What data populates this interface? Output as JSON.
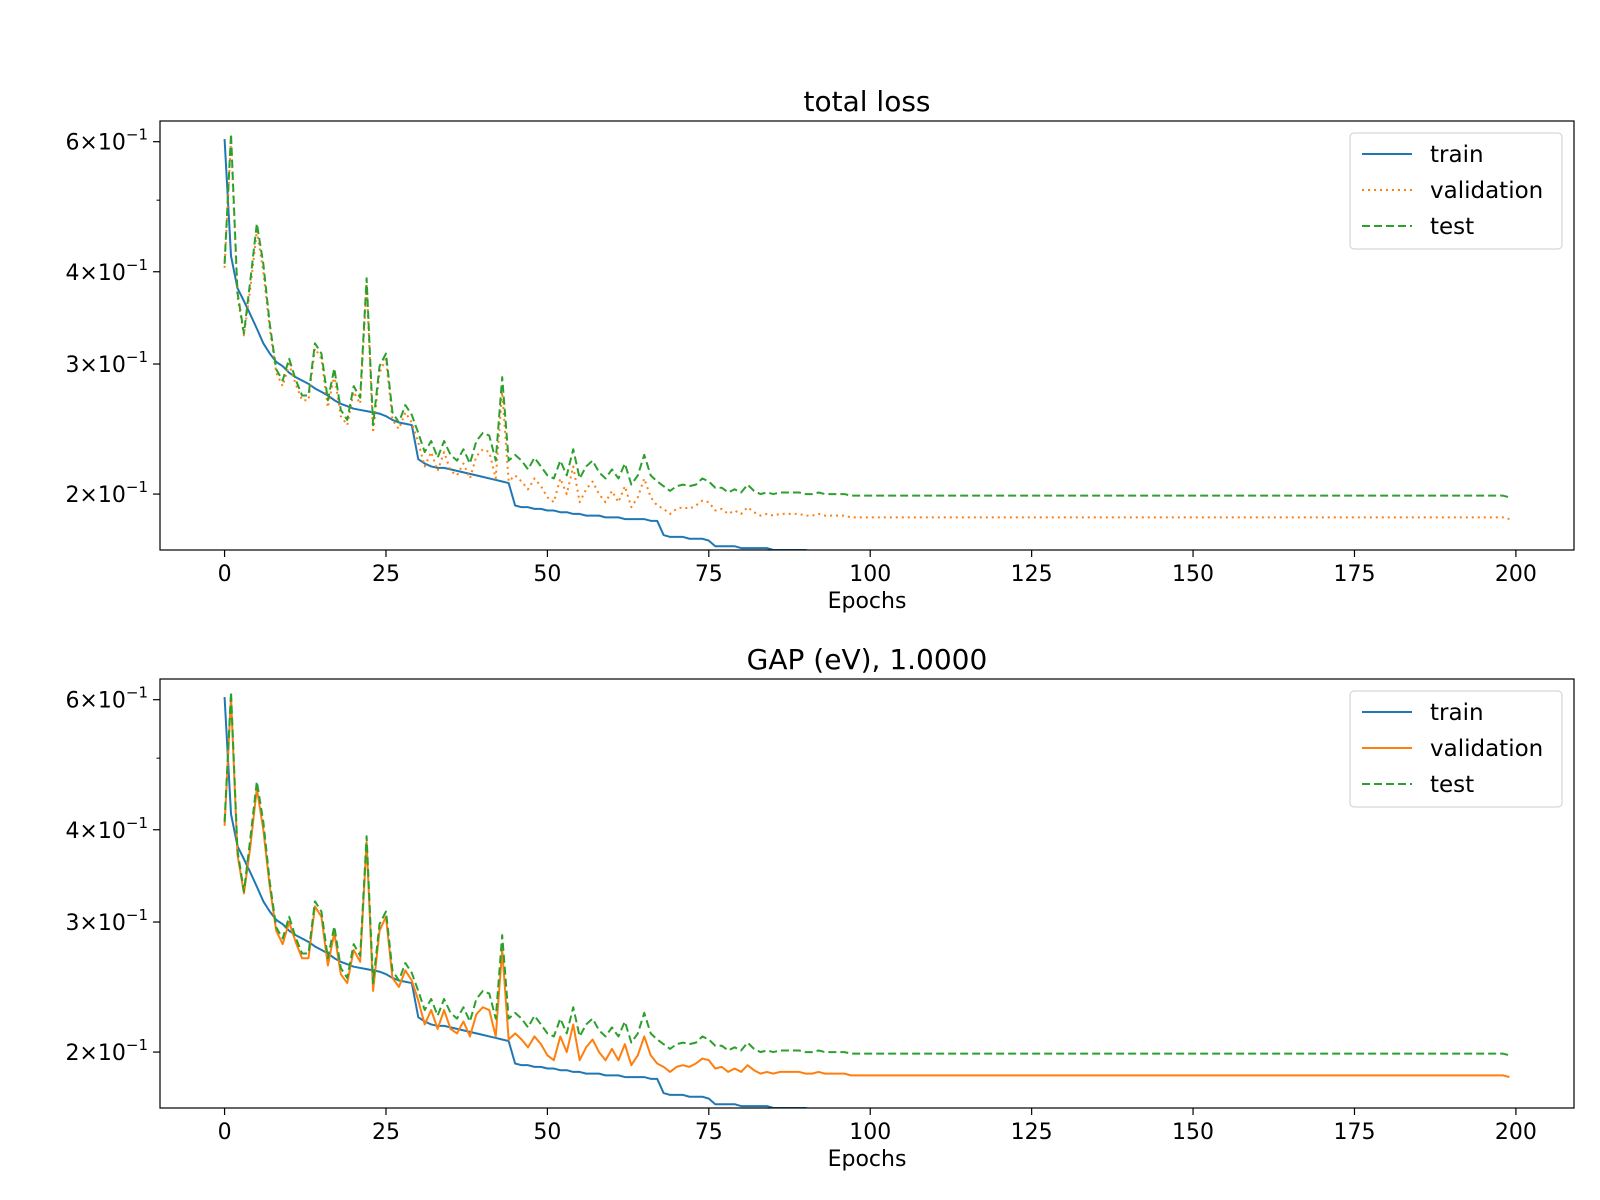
{
  "chart_data": [
    {
      "type": "line",
      "title": "total loss",
      "xlabel": "Epochs",
      "ylabel": "",
      "yscale": "log",
      "xlim": [
        -10,
        209
      ],
      "ylim": [
        0.168,
        0.64
      ],
      "xticks": [
        0,
        25,
        50,
        75,
        100,
        125,
        150,
        175,
        200
      ],
      "xtick_labels": [
        "0",
        "25",
        "50",
        "75",
        "100",
        "125",
        "150",
        "175",
        "200"
      ],
      "yticks": [
        0.6,
        0.4,
        0.3,
        0.2
      ],
      "ytick_labels": [
        {
          "mantissa": "6",
          "exponent": "−1"
        },
        {
          "mantissa": "4",
          "exponent": "−1"
        },
        {
          "mantissa": "3",
          "exponent": "−1"
        },
        {
          "mantissa": "2",
          "exponent": "−1"
        }
      ],
      "legend": {
        "position": "upper right",
        "entries": [
          "train",
          "validation",
          "test"
        ]
      },
      "grid": false,
      "series": [
        {
          "name": "train",
          "color": "#1f77b4",
          "style": "solid",
          "key": "train"
        },
        {
          "name": "validation",
          "color": "#ff7f0e",
          "style": "dotted",
          "key": "validation"
        },
        {
          "name": "test",
          "color": "#2ca02c",
          "style": "dashed",
          "key": "test"
        }
      ]
    },
    {
      "type": "line",
      "title": "GAP (eV), 1.0000",
      "xlabel": "Epochs",
      "ylabel": "",
      "yscale": "log",
      "xlim": [
        -10,
        209
      ],
      "ylim": [
        0.168,
        0.64
      ],
      "xticks": [
        0,
        25,
        50,
        75,
        100,
        125,
        150,
        175,
        200
      ],
      "xtick_labels": [
        "0",
        "25",
        "50",
        "75",
        "100",
        "125",
        "150",
        "175",
        "200"
      ],
      "yticks": [
        0.6,
        0.4,
        0.3,
        0.2
      ],
      "ytick_labels": [
        {
          "mantissa": "6",
          "exponent": "−1"
        },
        {
          "mantissa": "4",
          "exponent": "−1"
        },
        {
          "mantissa": "3",
          "exponent": "−1"
        },
        {
          "mantissa": "2",
          "exponent": "−1"
        }
      ],
      "legend": {
        "position": "upper right",
        "entries": [
          "train",
          "validation",
          "test"
        ]
      },
      "grid": false,
      "series": [
        {
          "name": "train",
          "color": "#1f77b4",
          "style": "solid",
          "key": "train"
        },
        {
          "name": "validation",
          "color": "#ff7f0e",
          "style": "solid",
          "key": "validation"
        },
        {
          "name": "test",
          "color": "#2ca02c",
          "style": "dashed",
          "key": "test"
        }
      ]
    }
  ],
  "epoch_data": {
    "epochs": "0-199",
    "train": [
      0.605,
      0.42,
      0.38,
      0.365,
      0.35,
      0.335,
      0.32,
      0.31,
      0.302,
      0.298,
      0.292,
      0.288,
      0.285,
      0.282,
      0.278,
      0.275,
      0.272,
      0.268,
      0.265,
      0.263,
      0.261,
      0.26,
      0.259,
      0.258,
      0.257,
      0.255,
      0.252,
      0.25,
      0.249,
      0.248,
      0.223,
      0.22,
      0.218,
      0.217,
      0.217,
      0.216,
      0.215,
      0.214,
      0.213,
      0.212,
      0.211,
      0.21,
      0.209,
      0.208,
      0.207,
      0.193,
      0.192,
      0.192,
      0.191,
      0.191,
      0.19,
      0.19,
      0.189,
      0.189,
      0.188,
      0.188,
      0.187,
      0.187,
      0.187,
      0.186,
      0.186,
      0.186,
      0.185,
      0.185,
      0.185,
      0.185,
      0.184,
      0.184,
      0.176,
      0.175,
      0.175,
      0.175,
      0.174,
      0.174,
      0.174,
      0.173,
      0.17,
      0.17,
      0.17,
      0.17,
      0.169,
      0.169,
      0.169,
      0.169,
      0.169,
      0.168,
      0.168,
      0.168,
      0.168,
      0.168,
      0.168,
      0.167,
      0.167,
      0.167,
      0.167,
      0.167,
      0.167,
      0.164,
      0.164,
      0.164,
      0.164,
      0.163,
      0.163,
      0.163,
      0.163,
      0.163,
      0.163,
      0.162,
      0.162,
      0.162,
      0.162,
      0.161,
      0.161,
      0.16,
      0.16,
      0.16,
      0.16,
      0.16,
      0.159,
      0.159,
      0.159,
      0.159,
      0.159,
      0.159,
      0.159,
      0.159,
      0.159,
      0.159,
      0.159,
      0.159,
      0.159,
      0.159,
      0.159,
      0.159,
      0.159,
      0.159,
      0.159,
      0.159,
      0.159,
      0.159,
      0.159,
      0.159,
      0.159,
      0.159,
      0.159,
      0.159,
      0.159,
      0.159,
      0.159,
      0.159,
      0.159,
      0.159,
      0.159,
      0.159,
      0.159,
      0.159,
      0.159,
      0.159,
      0.159,
      0.159,
      0.159,
      0.159,
      0.159,
      0.159,
      0.159,
      0.159,
      0.159,
      0.159,
      0.159,
      0.159,
      0.159,
      0.159,
      0.159,
      0.159,
      0.159,
      0.159,
      0.159,
      0.159,
      0.159,
      0.159,
      0.159,
      0.159,
      0.159,
      0.159,
      0.159,
      0.159,
      0.159,
      0.159,
      0.159,
      0.159,
      0.159,
      0.159,
      0.159,
      0.159,
      0.159,
      0.159,
      0.159,
      0.159,
      0.159,
      0.158
    ],
    "validation": [
      0.405,
      0.605,
      0.37,
      0.328,
      0.38,
      0.455,
      0.4,
      0.335,
      0.292,
      0.28,
      0.3,
      0.282,
      0.268,
      0.268,
      0.315,
      0.305,
      0.262,
      0.29,
      0.255,
      0.248,
      0.275,
      0.265,
      0.385,
      0.242,
      0.292,
      0.305,
      0.252,
      0.245,
      0.258,
      0.25,
      0.235,
      0.218,
      0.228,
      0.215,
      0.228,
      0.215,
      0.212,
      0.22,
      0.21,
      0.225,
      0.23,
      0.228,
      0.21,
      0.275,
      0.208,
      0.212,
      0.208,
      0.203,
      0.21,
      0.205,
      0.198,
      0.195,
      0.21,
      0.2,
      0.218,
      0.195,
      0.203,
      0.208,
      0.2,
      0.195,
      0.202,
      0.195,
      0.205,
      0.192,
      0.198,
      0.21,
      0.198,
      0.193,
      0.191,
      0.188,
      0.191,
      0.192,
      0.191,
      0.193,
      0.196,
      0.195,
      0.19,
      0.191,
      0.188,
      0.19,
      0.188,
      0.192,
      0.189,
      0.187,
      0.188,
      0.187,
      0.188,
      0.188,
      0.188,
      0.188,
      0.187,
      0.187,
      0.188,
      0.187,
      0.187,
      0.187,
      0.187,
      0.186,
      0.186,
      0.186,
      0.186,
      0.186,
      0.186,
      0.186,
      0.186,
      0.186,
      0.186,
      0.186,
      0.186,
      0.186,
      0.186,
      0.186,
      0.186,
      0.186,
      0.186,
      0.186,
      0.186,
      0.186,
      0.186,
      0.186,
      0.186,
      0.186,
      0.186,
      0.186,
      0.186,
      0.186,
      0.186,
      0.186,
      0.186,
      0.186,
      0.186,
      0.186,
      0.186,
      0.186,
      0.186,
      0.186,
      0.186,
      0.186,
      0.186,
      0.186,
      0.186,
      0.186,
      0.186,
      0.186,
      0.186,
      0.186,
      0.186,
      0.186,
      0.186,
      0.186,
      0.186,
      0.186,
      0.186,
      0.186,
      0.186,
      0.186,
      0.186,
      0.186,
      0.186,
      0.186,
      0.186,
      0.186,
      0.186,
      0.186,
      0.186,
      0.186,
      0.186,
      0.186,
      0.186,
      0.186,
      0.186,
      0.186,
      0.186,
      0.186,
      0.186,
      0.186,
      0.186,
      0.186,
      0.186,
      0.186,
      0.186,
      0.186,
      0.186,
      0.186,
      0.186,
      0.186,
      0.186,
      0.186,
      0.186,
      0.186,
      0.186,
      0.186,
      0.186,
      0.186,
      0.186,
      0.186,
      0.186,
      0.186,
      0.186,
      0.185
    ],
    "test": [
      0.41,
      0.615,
      0.375,
      0.33,
      0.39,
      0.465,
      0.41,
      0.34,
      0.295,
      0.285,
      0.305,
      0.286,
      0.272,
      0.272,
      0.32,
      0.31,
      0.268,
      0.296,
      0.26,
      0.252,
      0.28,
      0.27,
      0.392,
      0.248,
      0.298,
      0.31,
      0.258,
      0.25,
      0.264,
      0.256,
      0.242,
      0.228,
      0.236,
      0.224,
      0.236,
      0.226,
      0.222,
      0.23,
      0.22,
      0.236,
      0.242,
      0.24,
      0.222,
      0.288,
      0.222,
      0.226,
      0.222,
      0.216,
      0.224,
      0.218,
      0.212,
      0.21,
      0.222,
      0.212,
      0.23,
      0.21,
      0.218,
      0.222,
      0.214,
      0.21,
      0.216,
      0.21,
      0.22,
      0.206,
      0.212,
      0.226,
      0.212,
      0.208,
      0.205,
      0.202,
      0.205,
      0.206,
      0.205,
      0.206,
      0.21,
      0.208,
      0.204,
      0.204,
      0.201,
      0.203,
      0.201,
      0.206,
      0.202,
      0.2,
      0.201,
      0.2,
      0.201,
      0.201,
      0.201,
      0.201,
      0.2,
      0.2,
      0.201,
      0.2,
      0.2,
      0.2,
      0.2,
      0.199,
      0.199,
      0.199,
      0.199,
      0.199,
      0.199,
      0.199,
      0.199,
      0.199,
      0.199,
      0.199,
      0.199,
      0.199,
      0.199,
      0.199,
      0.199,
      0.199,
      0.199,
      0.199,
      0.199,
      0.199,
      0.199,
      0.199,
      0.199,
      0.199,
      0.199,
      0.199,
      0.199,
      0.199,
      0.199,
      0.199,
      0.199,
      0.199,
      0.199,
      0.199,
      0.199,
      0.199,
      0.199,
      0.199,
      0.199,
      0.199,
      0.199,
      0.199,
      0.199,
      0.199,
      0.199,
      0.199,
      0.199,
      0.199,
      0.199,
      0.199,
      0.199,
      0.199,
      0.199,
      0.199,
      0.199,
      0.199,
      0.199,
      0.199,
      0.199,
      0.199,
      0.199,
      0.199,
      0.199,
      0.199,
      0.199,
      0.199,
      0.199,
      0.199,
      0.199,
      0.199,
      0.199,
      0.199,
      0.199,
      0.199,
      0.199,
      0.199,
      0.199,
      0.199,
      0.199,
      0.199,
      0.199,
      0.199,
      0.199,
      0.199,
      0.199,
      0.199,
      0.199,
      0.199,
      0.199,
      0.199,
      0.199,
      0.199,
      0.199,
      0.199,
      0.199,
      0.199,
      0.199,
      0.199,
      0.199,
      0.199,
      0.199,
      0.198
    ]
  }
}
